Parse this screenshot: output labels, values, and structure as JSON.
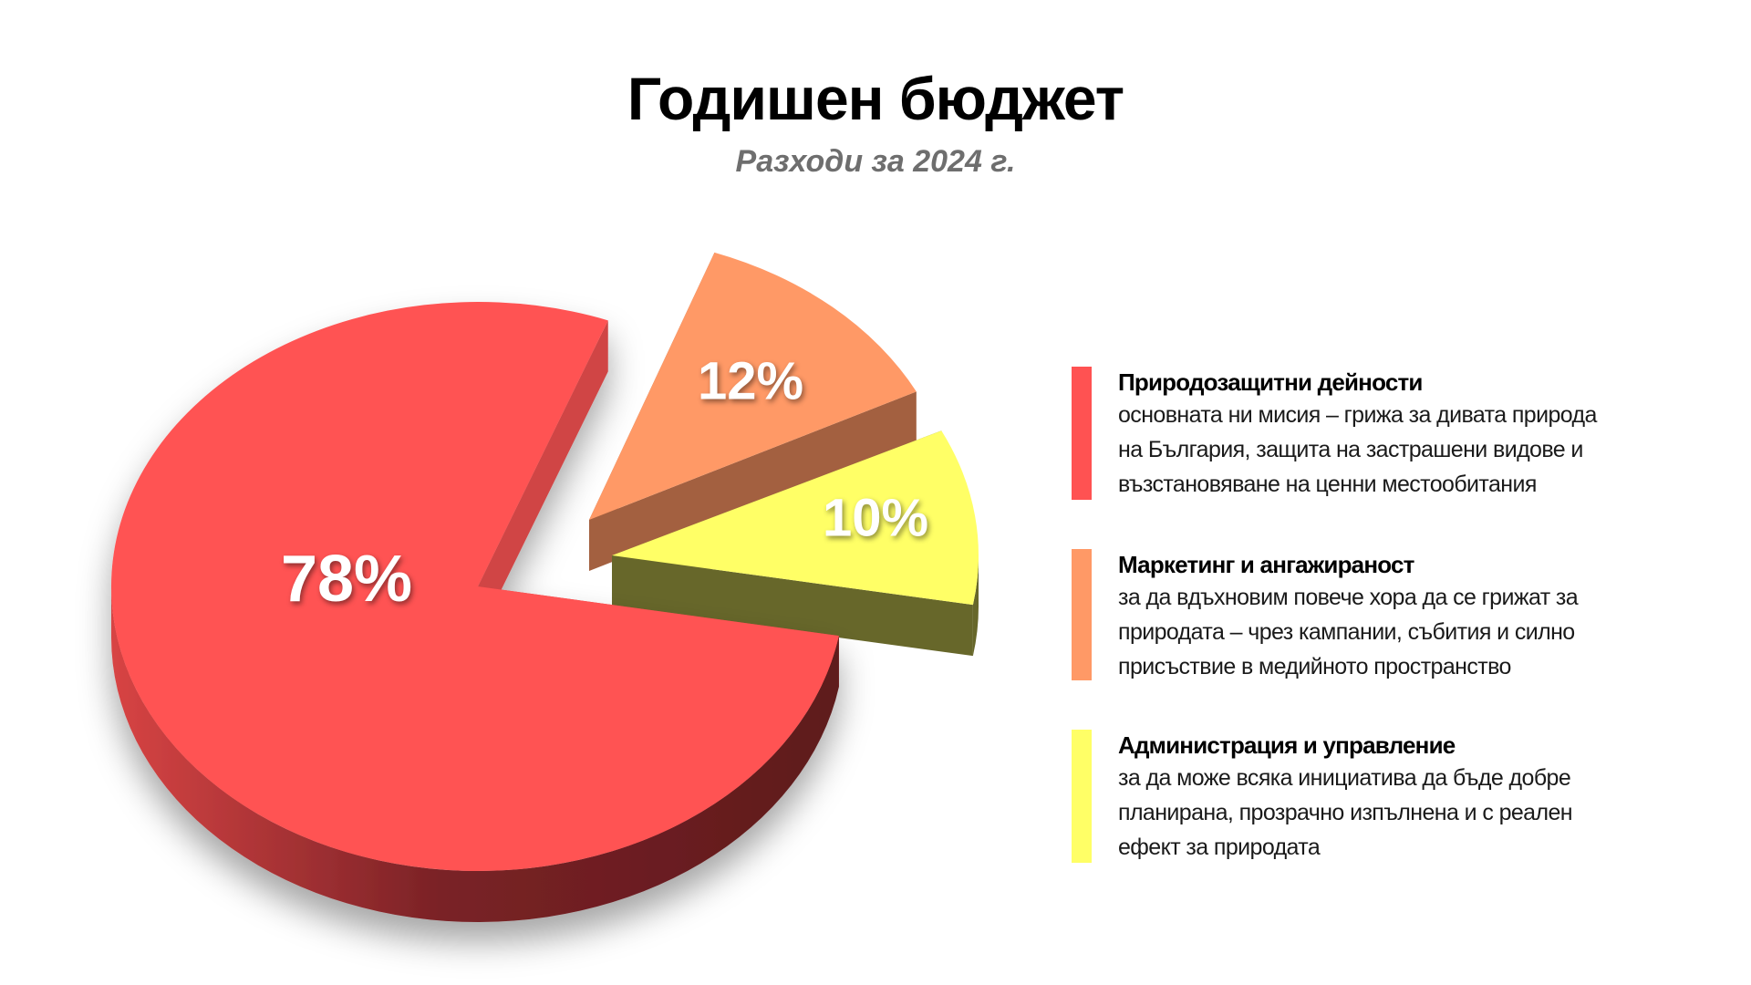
{
  "chart_data": {
    "type": "pie",
    "title": "Годишен бюджет",
    "subtitle": "Разходи за 2024 г.",
    "categories": [
      "Природозащитни дейности",
      "Маркетинг и ангажираност",
      "Администрация и управление"
    ],
    "values": [
      78,
      12,
      10
    ],
    "data_labels": [
      "78%",
      "12%",
      "10%"
    ],
    "colors": [
      "#ff5252",
      "#ff9966",
      "#ffff66"
    ],
    "legend_placement": "right"
  },
  "legend": [
    {
      "title": "Природозащитни дейности",
      "color": "#ff5252",
      "lines": [
        "основната ни мисия – грижа за дивата природа",
        "на България, защита на застрашени видове и",
        "възстановяване на ценни местообитания"
      ]
    },
    {
      "title": "Маркетинг и ангажираност",
      "color": "#ff9966",
      "lines": [
        "за да вдъхновим повече хора да се грижат за",
        "природата – чрез кампании, събития и силно",
        "присъствие в медийното пространство"
      ]
    },
    {
      "title": "Администрация и управление",
      "color": "#ffff66",
      "lines": [
        "за да може всяка инициатива да бъде добре",
        "планирана, прозрачно изпълнена и с реален",
        "ефект за природата"
      ]
    }
  ]
}
